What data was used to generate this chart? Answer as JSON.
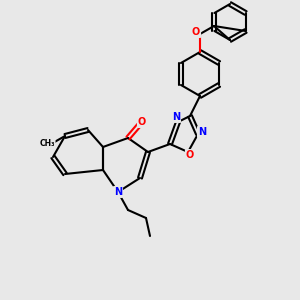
{
  "bg_color": "#e8e8e8",
  "bond_color": "#000000",
  "atom_colors": {
    "N": "#0000ff",
    "O": "#ff0000",
    "C": "#000000"
  },
  "line_width": 1.5,
  "figsize": [
    3.0,
    3.0
  ],
  "dpi": 100
}
